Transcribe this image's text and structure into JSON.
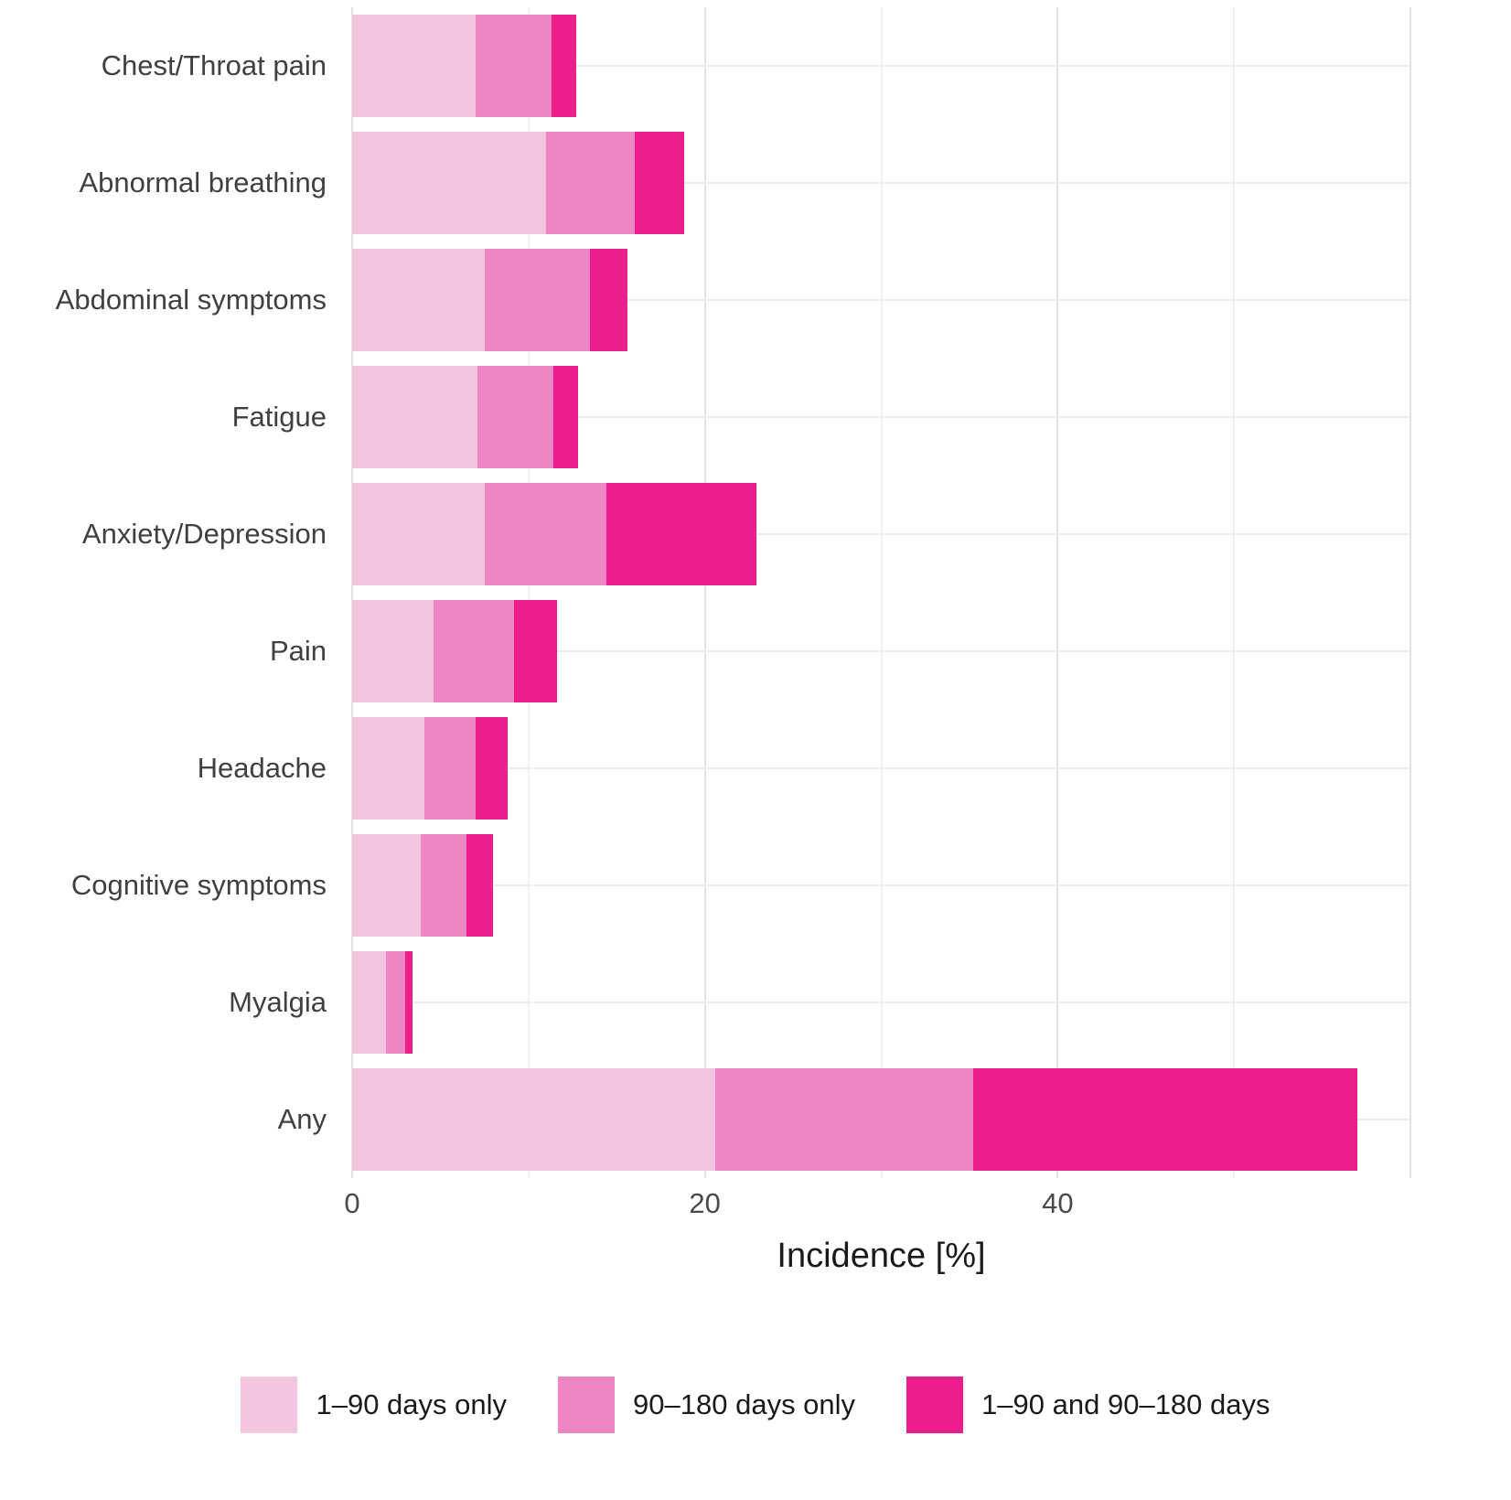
{
  "chart_data": {
    "type": "bar",
    "orientation": "horizontal",
    "stacked": true,
    "title": "",
    "xlabel": "Incidence [%]",
    "ylabel": "",
    "xlim": [
      0,
      60
    ],
    "x_ticks": [
      0,
      20,
      40
    ],
    "x_major_gridlines": [
      0,
      20,
      40,
      60
    ],
    "x_minor_gridlines": [
      10,
      30,
      50
    ],
    "grid": true,
    "legend_position": "bottom",
    "categories": [
      "Chest/Throat pain",
      "Abnormal breathing",
      "Abdominal symptoms",
      "Fatigue",
      "Anxiety/Depression",
      "Pain",
      "Headache",
      "Cognitive symptoms",
      "Myalgia",
      "Any"
    ],
    "series": [
      {
        "name": "1–90 days only",
        "color": "#F3C5E1",
        "values": [
          7.0,
          11.0,
          7.5,
          7.1,
          7.5,
          4.6,
          4.1,
          3.9,
          1.9,
          20.6
        ]
      },
      {
        "name": "90–180 days only",
        "color": "#EE86C3",
        "values": [
          4.3,
          5.0,
          6.0,
          4.3,
          6.9,
          4.6,
          2.9,
          2.6,
          1.1,
          14.6
        ]
      },
      {
        "name": "1–90 and 90–180 days",
        "color": "#EC1E8D",
        "values": [
          1.4,
          2.8,
          2.1,
          1.4,
          8.5,
          2.4,
          1.8,
          1.5,
          0.4,
          21.8
        ]
      }
    ]
  }
}
